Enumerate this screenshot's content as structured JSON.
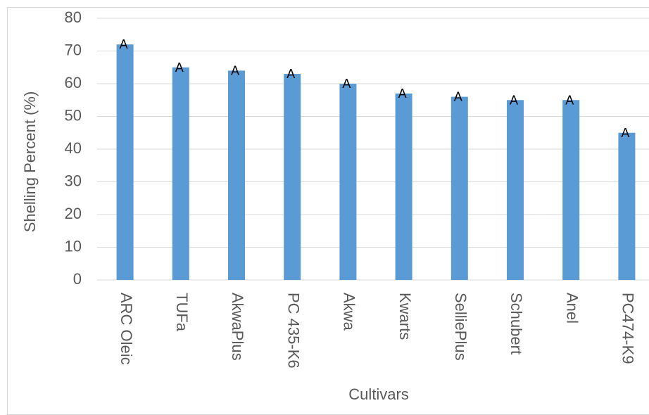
{
  "chart_data": {
    "type": "bar",
    "title": "",
    "xlabel": "Cultivars",
    "ylabel": "Shelling  Percent (%)",
    "ylim": [
      0,
      80
    ],
    "yticks": [
      0,
      10,
      20,
      30,
      40,
      50,
      60,
      70,
      80
    ],
    "grid": true,
    "legend": "none",
    "categories": [
      "ARC Oleic",
      "TUFa",
      "AkwaPlus",
      "PC 435-K6",
      "Akwa",
      "Kwarts",
      "SelliePlus",
      "Schubert",
      "Anel",
      "PC474-K9"
    ],
    "values": [
      72,
      65,
      64,
      63,
      60,
      57,
      56,
      55,
      55,
      45
    ],
    "data_labels": [
      "A",
      "A",
      "A",
      "A",
      "A",
      "A",
      "A",
      "A",
      "A",
      "A"
    ],
    "bar_color": "#5B9BD5",
    "grid_color": "#d9d9d9",
    "text_color": "#595959"
  }
}
